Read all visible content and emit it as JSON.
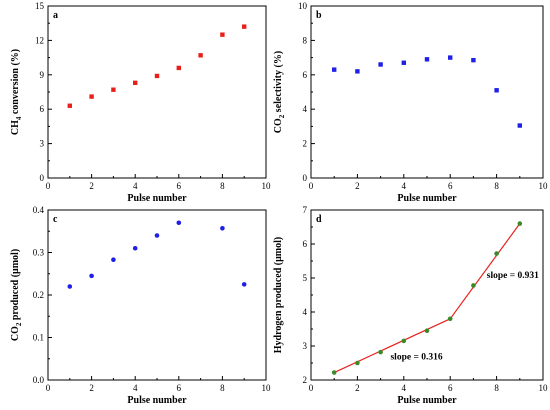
{
  "chart_data": [
    {
      "panel": "a",
      "type": "scatter",
      "xlabel": "Pulse number",
      "ylabel": "CH4 conversion (%)",
      "ylabel_main": "CH",
      "ylabel_sub": "4",
      "ylabel_rest": " conversion (%)",
      "xlim": [
        0,
        10
      ],
      "ylim": [
        0,
        15
      ],
      "xticks": [
        0,
        2,
        4,
        6,
        8,
        10
      ],
      "yticks": [
        0,
        3,
        6,
        9,
        12,
        15
      ],
      "marker": "square",
      "color": "#e8201c",
      "x": [
        1,
        2,
        3,
        4,
        5,
        6,
        7,
        8,
        9
      ],
      "y": [
        6.3,
        7.1,
        7.7,
        8.3,
        8.9,
        9.6,
        10.7,
        12.5,
        13.2
      ]
    },
    {
      "panel": "b",
      "type": "scatter",
      "xlabel": "Pulse number",
      "ylabel": "CO2 selectivity (%)",
      "ylabel_main": "CO",
      "ylabel_sub": "2",
      "ylabel_rest": " selectivity (%)",
      "xlim": [
        0,
        10
      ],
      "ylim": [
        0,
        10
      ],
      "xticks": [
        0,
        2,
        4,
        6,
        8,
        10
      ],
      "yticks": [
        0,
        2,
        4,
        6,
        8,
        10
      ],
      "marker": "square",
      "color": "#1f1fe8",
      "x": [
        1,
        2,
        3,
        4,
        5,
        6,
        7,
        8,
        9
      ],
      "y": [
        6.3,
        6.2,
        6.6,
        6.7,
        6.9,
        7.0,
        6.85,
        5.1,
        3.05
      ]
    },
    {
      "panel": "c",
      "type": "scatter",
      "xlabel": "Pulse number",
      "ylabel": "CO2 produced (μmol)",
      "ylabel_main": "CO",
      "ylabel_sub": "2",
      "ylabel_rest": " produced (μmol)",
      "xlim": [
        0,
        10
      ],
      "ylim": [
        0.0,
        0.4
      ],
      "xticks": [
        0,
        2,
        4,
        6,
        8,
        10
      ],
      "yticks": [
        0.0,
        0.1,
        0.2,
        0.3,
        0.4
      ],
      "yticklabels": [
        "0.0",
        "0.1",
        "0.2",
        "0.3",
        "0.4"
      ],
      "marker": "circle",
      "color": "#1f1fe8",
      "x": [
        1,
        2,
        3,
        4,
        5,
        6,
        8,
        9
      ],
      "y": [
        0.22,
        0.245,
        0.283,
        0.31,
        0.34,
        0.37,
        0.357,
        0.225
      ]
    },
    {
      "panel": "d",
      "type": "line",
      "xlabel": "Pulse number",
      "ylabel": "Hydrogen produced (μmol)",
      "ylabel_main": "Hydrogen produced (μmol)",
      "ylabel_sub": "",
      "ylabel_rest": "",
      "xlim": [
        0,
        10
      ],
      "ylim": [
        2,
        7
      ],
      "xticks": [
        0,
        2,
        4,
        6,
        8,
        10
      ],
      "yticks": [
        2,
        3,
        4,
        5,
        6,
        7
      ],
      "marker": "circle",
      "color": "#3a8a2a",
      "line_color": "#e8201c",
      "x": [
        1,
        2,
        3,
        4,
        5,
        6,
        7,
        8,
        9
      ],
      "y": [
        2.22,
        2.5,
        2.82,
        3.15,
        3.45,
        3.8,
        4.78,
        5.72,
        6.6
      ],
      "fit_lines": [
        {
          "x": [
            1,
            6
          ],
          "y": [
            2.22,
            3.8
          ]
        },
        {
          "x": [
            6,
            9
          ],
          "y": [
            3.8,
            6.6
          ]
        }
      ],
      "annotations": [
        {
          "text": "slope = 0.316",
          "x": 4.55,
          "y": 2.6
        },
        {
          "text": "slope = 0.931",
          "x": 8.7,
          "y": 5.0
        }
      ]
    }
  ]
}
